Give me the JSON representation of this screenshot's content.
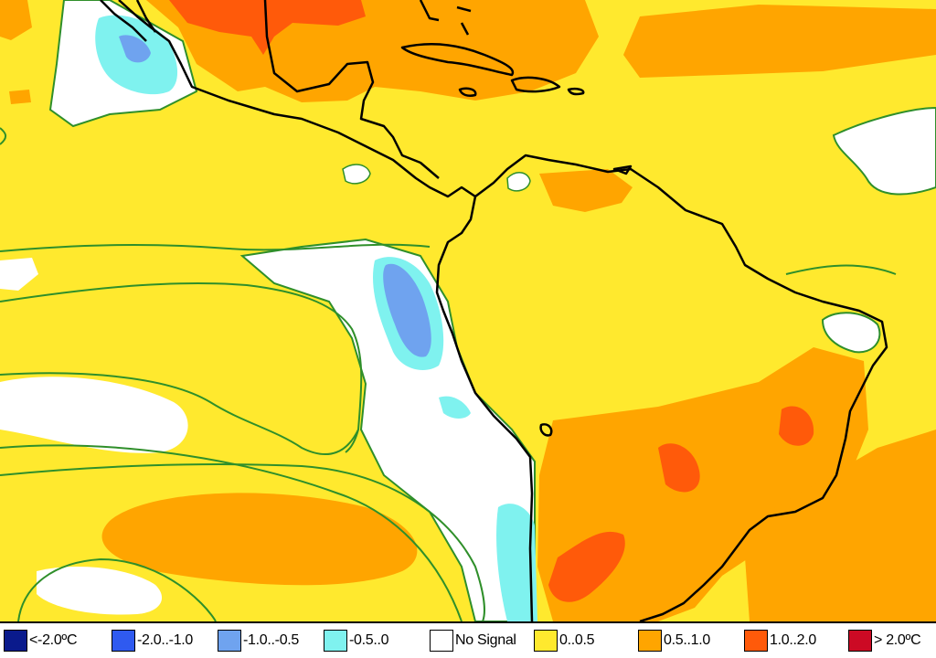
{
  "legend": {
    "items": [
      {
        "label": "<-2.0ºC",
        "color": "#0a1a8c"
      },
      {
        "label": "-2.0..-1.0",
        "color": "#2f5af0"
      },
      {
        "label": "-1.0..-0.5",
        "color": "#6fa3ef"
      },
      {
        "label": "-0.5..0",
        "color": "#7ff2ef"
      },
      {
        "label": "No Signal",
        "color": "#ffffff"
      },
      {
        "label": "0..0.5",
        "color": "#ffe92e"
      },
      {
        "label": "0.5..1.0",
        "color": "#ffa500"
      },
      {
        "label": "1.0..2.0",
        "color": "#ff5a0a"
      },
      {
        "label": "> 2.0ºC",
        "color": "#cc0a24"
      }
    ]
  },
  "colors": {
    "contour": "#2f8f2a",
    "coastline": "#000000",
    "background": "#ffe92e"
  }
}
